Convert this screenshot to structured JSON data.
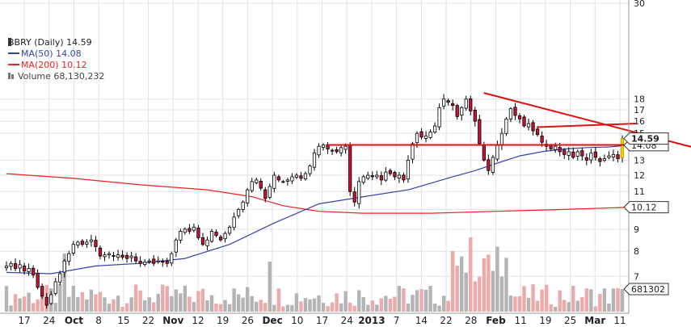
{
  "chart_data": {
    "type": "candlestick",
    "legend": {
      "placement": "top-left",
      "title": "BBRY (Daily) 14.59",
      "ma50": "MA(50) 14.08",
      "ma200": "MA(200) 10.12",
      "volume": "Volume 68,130,232"
    },
    "colors": {
      "up": "#ffffff",
      "down": "#cc1133",
      "outline": "#000000",
      "ma50": "#3344aa",
      "ma200": "#ee2222",
      "trend": "#dd1111",
      "vol_up": "#b4b4b4",
      "vol_down": "#eeaaaa",
      "grid": "#e2e2e2",
      "highlight": "#f0d000"
    },
    "y_axis": {
      "scale": "log",
      "range": [
        5.8,
        30
      ],
      "ticks": [
        30,
        18,
        17,
        16,
        15,
        13,
        12,
        11,
        10,
        9,
        8,
        7
      ]
    },
    "x_axis": {
      "labels": [
        "17",
        "24",
        "Oct",
        "8",
        "15",
        "22",
        "Nov",
        "12",
        "19",
        "26",
        "Dec",
        "10",
        "17",
        "24",
        "2013",
        "7",
        "14",
        "22",
        "28",
        "Feb",
        "11",
        "19",
        "25",
        "Mar",
        "11"
      ],
      "bold_labels": [
        "Oct",
        "Nov",
        "Dec",
        "2013",
        "Feb",
        "Mar"
      ]
    },
    "price_tags": {
      "last": "14.59",
      "ma50": "14.08",
      "ma200": "10.12",
      "volume": "681302"
    },
    "closes": [
      7.4,
      7.5,
      7.3,
      7.45,
      7.2,
      7.3,
      7.05,
      6.6,
      6.3,
      6.0,
      6.35,
      6.8,
      7.1,
      7.6,
      7.9,
      8.3,
      8.4,
      8.3,
      8.4,
      8.5,
      8.2,
      7.8,
      7.85,
      7.9,
      7.8,
      7.85,
      7.75,
      7.7,
      7.8,
      7.6,
      7.5,
      7.55,
      7.6,
      7.5,
      7.6,
      7.55,
      7.5,
      7.9,
      8.5,
      8.9,
      9.0,
      8.9,
      9.1,
      8.6,
      8.3,
      8.5,
      8.9,
      8.7,
      8.5,
      8.8,
      9.1,
      9.6,
      10.0,
      10.4,
      11.1,
      11.6,
      11.7,
      11.2,
      10.6,
      11.3,
      12.0,
      11.7,
      11.6,
      11.7,
      11.9,
      12.0,
      11.8,
      12.1,
      12.6,
      13.5,
      14.0,
      14.1,
      13.8,
      13.7,
      13.6,
      13.9,
      14.0,
      11.0,
      10.4,
      11.6,
      11.9,
      12.0,
      11.9,
      12.0,
      11.7,
      12.2,
      12.1,
      11.9,
      12.0,
      11.7,
      13.0,
      14.2,
      15.0,
      14.7,
      14.8,
      15.1,
      15.6,
      17.2,
      18.0,
      17.7,
      17.4,
      16.4,
      17.2,
      18.0,
      16.9,
      16.0,
      14.2,
      13.0,
      12.3,
      13.2,
      14.1,
      15.0,
      16.2,
      17.1,
      16.5,
      16.2,
      15.6,
      15.8,
      15.2,
      14.9,
      14.3,
      14.0,
      13.8,
      14.0,
      13.6,
      13.4,
      13.6,
      13.2,
      13.6,
      13.3,
      13.0,
      13.5,
      13.2,
      12.9,
      13.1,
      13.3,
      13.4,
      13.1,
      14.59
    ],
    "moving_averages": {
      "ma50": [
        [
          0,
          7.15
        ],
        [
          10,
          7.1
        ],
        [
          20,
          7.4
        ],
        [
          30,
          7.5
        ],
        [
          40,
          7.7
        ],
        [
          50,
          8.3
        ],
        [
          60,
          9.3
        ],
        [
          70,
          10.3
        ],
        [
          80,
          10.7
        ],
        [
          90,
          11.1
        ],
        [
          100,
          11.9
        ],
        [
          105,
          12.3
        ],
        [
          110,
          12.8
        ],
        [
          115,
          13.3
        ],
        [
          120,
          13.6
        ],
        [
          125,
          13.8
        ],
        [
          130,
          13.9
        ],
        [
          135,
          13.95
        ],
        [
          140,
          14.08
        ]
      ],
      "ma200": [
        [
          0,
          12.1
        ],
        [
          15,
          11.8
        ],
        [
          30,
          11.4
        ],
        [
          45,
          11.1
        ],
        [
          55,
          10.7
        ],
        [
          62,
          10.2
        ],
        [
          70,
          9.9
        ],
        [
          80,
          9.8
        ],
        [
          95,
          9.8
        ],
        [
          110,
          9.9
        ],
        [
          125,
          10.0
        ],
        [
          140,
          10.12
        ]
      ]
    },
    "trendlines": [
      {
        "from": [
          72,
          14.1
        ],
        "to": [
          140,
          14.1
        ]
      },
      {
        "from": [
          107,
          18.6
        ],
        "to": [
          160,
          13.4
        ]
      },
      {
        "from": [
          119,
          15.5
        ],
        "to": [
          141,
          15.8
        ]
      }
    ]
  }
}
